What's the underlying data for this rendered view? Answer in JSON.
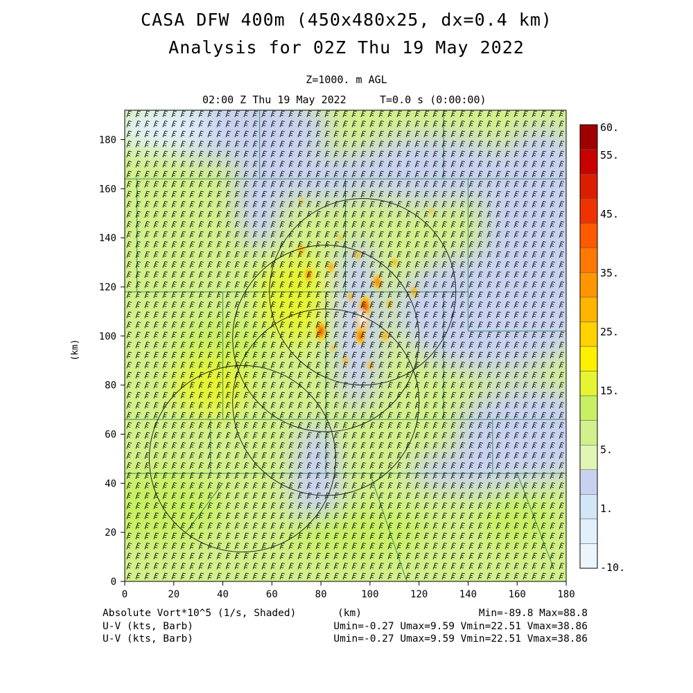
{
  "header": {
    "title_line1": "CASA DFW 400m (450x480x25, dx=0.4 km)",
    "title_line2": "Analysis for 02Z Thu 19 May 2022",
    "level": "Z=1000. m AGL",
    "valid_time": "02:00 Z Thu 19 May 2022",
    "forecast_time": "T=0.0 s (0:00:00)"
  },
  "footer": {
    "field_label": "Absolute Vort*10^5 (1/s, Shaded)",
    "xunit": "(km)",
    "minmax": "Min=-89.8 Max=88.8",
    "wind1_label": "U-V (kts, Barb)",
    "wind1_stats": "Umin=-0.27 Umax=9.59 Vmin=22.51 Vmax=38.86",
    "wind2_label": "U-V (kts, Barb)",
    "wind2_stats": "Umin=-0.27 Umax=9.59 Vmin=22.51 Vmax=38.86"
  },
  "chart_data": {
    "type": "heatmap",
    "field": "Absolute Vort*10^5 (1/s, Shaded)",
    "xlabel": "(km)",
    "ylabel": "(km)",
    "xlim": [
      0,
      180
    ],
    "ylim": [
      0,
      192
    ],
    "x_ticks": [
      "0",
      "20",
      "40",
      "60",
      "80",
      "100",
      "120",
      "140",
      "160",
      "180"
    ],
    "y_ticks": [
      "0",
      "20",
      "40",
      "60",
      "80",
      "100",
      "120",
      "140",
      "160",
      "180"
    ],
    "colorbar": {
      "labels": [
        "60.",
        "55.",
        "45.",
        "35.",
        "25.",
        "15.",
        "5.",
        "1.",
        "-10."
      ],
      "bins": [
        {
          "color": "#a00000"
        },
        {
          "color": "#c80000"
        },
        {
          "color": "#dc1e00"
        },
        {
          "color": "#f03200"
        },
        {
          "color": "#ff5a00"
        },
        {
          "color": "#ff7800"
        },
        {
          "color": "#ff9600"
        },
        {
          "color": "#ffb400"
        },
        {
          "color": "#ffd200"
        },
        {
          "color": "#fff000"
        },
        {
          "color": "#e6f532"
        },
        {
          "color": "#c8f064"
        },
        {
          "color": "#d2f08c"
        },
        {
          "color": "#e1f5b4"
        },
        {
          "color": "#c8d2f0"
        },
        {
          "color": "#d2e6f5"
        },
        {
          "color": "#e1f0fa"
        },
        {
          "color": "#ebf5fc"
        }
      ]
    },
    "min": -89.8,
    "max": 88.8,
    "radar_rings_km": [
      {
        "cx": 97,
        "cy": 118,
        "r": 38
      },
      {
        "cx": 82,
        "cy": 99,
        "r": 38
      },
      {
        "cx": 82,
        "cy": 73,
        "r": 38
      },
      {
        "cx": 48,
        "cy": 50,
        "r": 38
      }
    ],
    "vorticity_maxima_km": [
      {
        "x": 97,
        "y": 106,
        "v": 88.8
      },
      {
        "x": 80,
        "y": 102,
        "v": 55
      },
      {
        "x": 103,
        "y": 122,
        "v": 40
      },
      {
        "x": 75,
        "y": 125,
        "v": 30
      },
      {
        "x": 72,
        "y": 135,
        "v": 25
      },
      {
        "x": 118,
        "y": 118,
        "v": 25
      }
    ],
    "colors": {
      "land_green": "#d2f08c",
      "light_blue": "#c8d2f0",
      "border_green": "#3a8a5a",
      "ring": "#202020"
    }
  }
}
